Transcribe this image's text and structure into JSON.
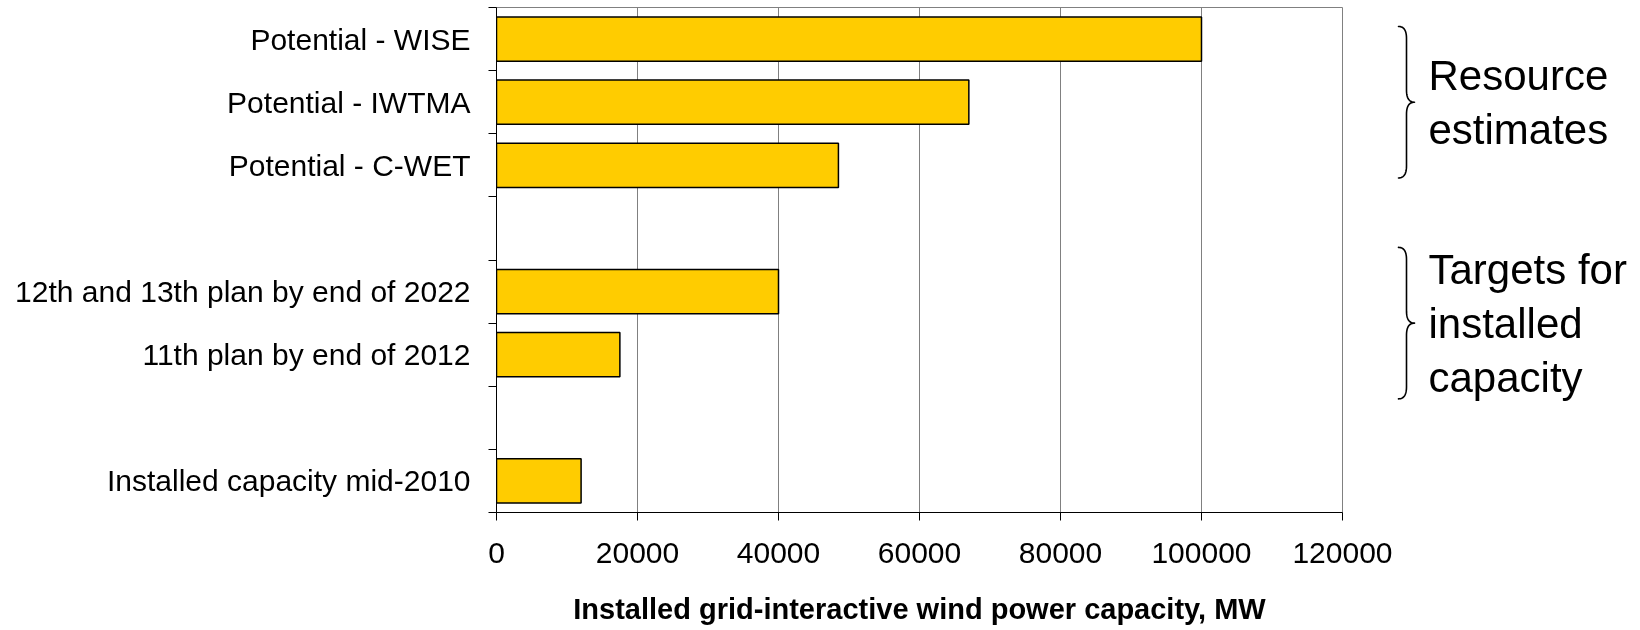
{
  "chart_data": {
    "type": "bar",
    "orientation": "horizontal",
    "categories": [
      "Potential - WISE",
      "Potential - IWTMA",
      "Potential - C-WET",
      null,
      "12th and 13th plan by end of 2022",
      "11th plan by end of 2012",
      null,
      "Installed capacity mid-2010"
    ],
    "values": [
      100000,
      67000,
      48500,
      null,
      40000,
      17500,
      null,
      12000
    ],
    "color": "#ffcc00",
    "xlim": [
      0,
      120000
    ],
    "xticks": [
      0,
      20000,
      40000,
      60000,
      80000,
      100000,
      120000
    ],
    "xlabel": "Installed grid-interactive wind power capacity, MW",
    "grid": "x",
    "annotations": [
      "Resource estimates",
      "Targets for installed capacity"
    ]
  }
}
